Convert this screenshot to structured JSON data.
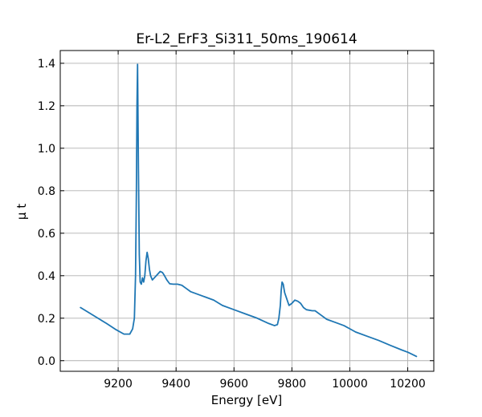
{
  "chart_data": {
    "type": "line",
    "title": "Er-L2_ErF3_Si311_50ms_190614",
    "xlabel": "Energy [eV]",
    "ylabel": "μ t",
    "xlim": [
      9000,
      10290
    ],
    "ylim": [
      -0.05,
      1.46
    ],
    "xticks": [
      9200,
      9400,
      9600,
      9800,
      10000,
      10200
    ],
    "yticks": [
      0.0,
      0.2,
      0.4,
      0.6,
      0.8,
      1.0,
      1.2,
      1.4
    ],
    "xtick_labels": [
      "9200",
      "9400",
      "9600",
      "9800",
      "10000",
      "10200"
    ],
    "ytick_labels": [
      "0.0",
      "0.2",
      "0.4",
      "0.6",
      "0.8",
      "1.0",
      "1.2",
      "1.4"
    ],
    "grid": true,
    "ticks_direction": "in",
    "series": [
      {
        "color": "#1f77b4",
        "x": [
          9070,
          9100,
          9130,
          9160,
          9190,
          9220,
          9240,
          9250,
          9256,
          9260,
          9263,
          9265,
          9267,
          9270,
          9273,
          9276,
          9280,
          9284,
          9288,
          9292,
          9296,
          9300,
          9304,
          9308,
          9312,
          9318,
          9325,
          9335,
          9345,
          9353,
          9360,
          9368,
          9378,
          9390,
          9405,
          9420,
          9435,
          9450,
          9470,
          9500,
          9530,
          9560,
          9600,
          9640,
          9680,
          9720,
          9740,
          9750,
          9755,
          9760,
          9763,
          9766,
          9770,
          9775,
          9780,
          9790,
          9800,
          9810,
          9820,
          9830,
          9840,
          9850,
          9870,
          9880,
          9900,
          9920,
          9950,
          9980,
          10000,
          10020,
          10060,
          10100,
          10140,
          10180,
          10200,
          10230
        ],
        "y": [
          0.25,
          0.225,
          0.2,
          0.175,
          0.148,
          0.125,
          0.125,
          0.15,
          0.2,
          0.4,
          0.8,
          1.2,
          1.395,
          0.9,
          0.5,
          0.37,
          0.36,
          0.39,
          0.37,
          0.4,
          0.47,
          0.51,
          0.48,
          0.43,
          0.4,
          0.38,
          0.39,
          0.405,
          0.42,
          0.415,
          0.4,
          0.38,
          0.362,
          0.36,
          0.36,
          0.355,
          0.34,
          0.325,
          0.315,
          0.3,
          0.285,
          0.26,
          0.24,
          0.22,
          0.2,
          0.175,
          0.165,
          0.17,
          0.2,
          0.26,
          0.33,
          0.37,
          0.36,
          0.32,
          0.3,
          0.26,
          0.27,
          0.285,
          0.28,
          0.27,
          0.25,
          0.24,
          0.235,
          0.235,
          0.215,
          0.195,
          0.18,
          0.165,
          0.15,
          0.135,
          0.115,
          0.095,
          0.072,
          0.05,
          0.04,
          0.02
        ]
      }
    ]
  }
}
